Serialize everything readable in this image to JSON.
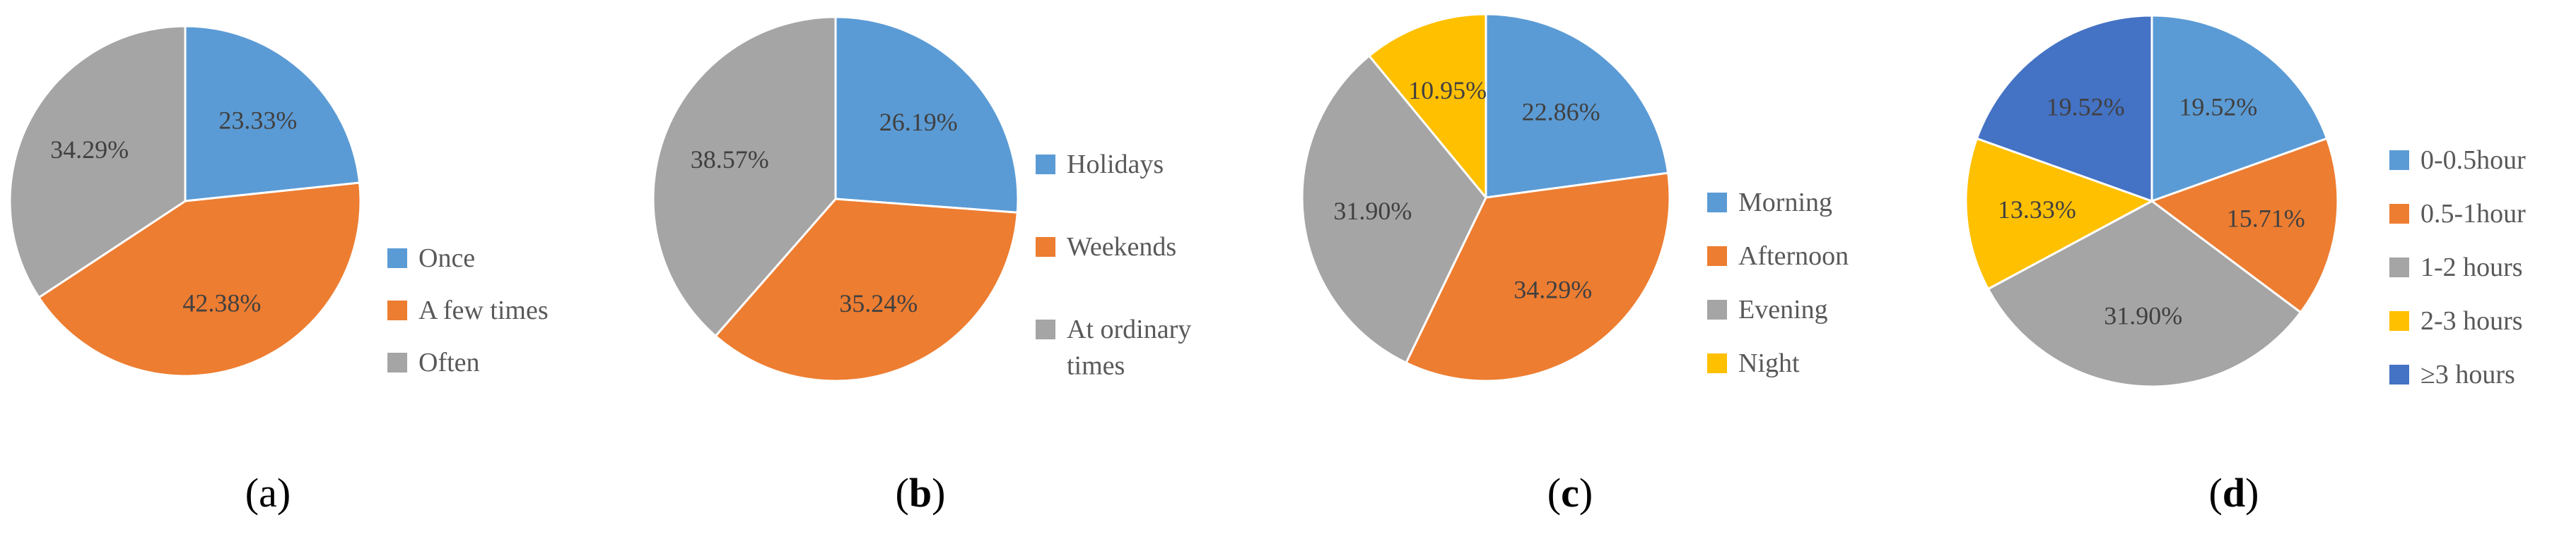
{
  "figure": {
    "panels": [
      {
        "caption_open": "(",
        "caption_letter": "a",
        "caption_close": ")",
        "caption_bold": false
      },
      {
        "caption_open": "(",
        "caption_letter": "b",
        "caption_close": ")",
        "caption_bold": true
      },
      {
        "caption_open": "(",
        "caption_letter": "c",
        "caption_close": ")",
        "caption_bold": true
      },
      {
        "caption_open": "(",
        "caption_letter": "d",
        "caption_close": ")",
        "caption_bold": true
      }
    ]
  },
  "chart_data": [
    {
      "type": "pie",
      "start_angle_deg": 0,
      "direction": "clockwise",
      "legend_position": "right",
      "slices": [
        {
          "label": "Once",
          "value": 23.33,
          "value_label": "23.33%",
          "color": "#5B9BD5"
        },
        {
          "label": "A few times",
          "value": 42.38,
          "value_label": "42.38%",
          "color": "#ED7D31"
        },
        {
          "label": "Often",
          "value": 34.29,
          "value_label": "34.29%",
          "color": "#A5A5A5"
        }
      ]
    },
    {
      "type": "pie",
      "start_angle_deg": 0,
      "direction": "clockwise",
      "legend_position": "right",
      "slices": [
        {
          "label": "Holidays",
          "value": 26.19,
          "value_label": "26.19%",
          "color": "#5B9BD5"
        },
        {
          "label": "Weekends",
          "value": 35.24,
          "value_label": "35.24%",
          "color": "#ED7D31"
        },
        {
          "label": "At ordinary times",
          "label_lines": [
            "At ordinary",
            "times"
          ],
          "value": 38.57,
          "value_label": "38.57%",
          "color": "#A5A5A5"
        }
      ]
    },
    {
      "type": "pie",
      "start_angle_deg": 0,
      "direction": "clockwise",
      "legend_position": "right",
      "slices": [
        {
          "label": "Morning",
          "value": 22.86,
          "value_label": "22.86%",
          "color": "#5B9BD5"
        },
        {
          "label": "Afternoon",
          "value": 34.29,
          "value_label": "34.29%",
          "color": "#ED7D31"
        },
        {
          "label": "Evening",
          "value": 31.9,
          "value_label": "31.90%",
          "color": "#A5A5A5"
        },
        {
          "label": "Night",
          "value": 10.95,
          "value_label": "10.95%",
          "color": "#FFC000"
        }
      ]
    },
    {
      "type": "pie",
      "start_angle_deg": 0,
      "direction": "clockwise",
      "legend_position": "right",
      "slices": [
        {
          "label": "0-0.5hour",
          "value": 19.52,
          "value_label": "19.52%",
          "color": "#5B9BD5"
        },
        {
          "label": "0.5-1hour",
          "value": 15.71,
          "value_label": "15.71%",
          "color": "#ED7D31"
        },
        {
          "label": "1-2 hours",
          "value": 31.9,
          "value_label": "31.90%",
          "color": "#A5A5A5"
        },
        {
          "label": "2-3 hours",
          "value": 13.33,
          "value_label": "13.33%",
          "color": "#FFC000"
        },
        {
          "label": "≥3 hours",
          "value": 19.52,
          "value_label": "19.52%",
          "color": "#4472C4"
        }
      ]
    }
  ]
}
